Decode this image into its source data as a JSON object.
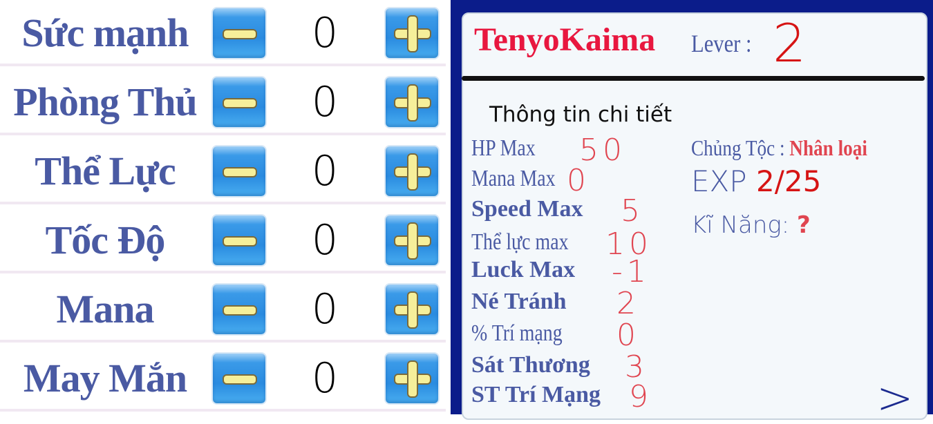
{
  "attributes": [
    {
      "label": "Sức mạnh",
      "value": "0"
    },
    {
      "label": "Phòng Thủ",
      "value": "0"
    },
    {
      "label": "Thể Lực",
      "value": "0"
    },
    {
      "label": "Tốc Độ",
      "value": "0"
    },
    {
      "label": "Mana",
      "value": "0"
    },
    {
      "label": "May Mắn",
      "value": "0"
    }
  ],
  "icons": {
    "decrease": "minus-icon",
    "increase": "plus-icon",
    "next": "chevron-right-icon"
  },
  "profile": {
    "name": "TenyoKaima",
    "level_label": "Lever :",
    "level": "2",
    "details_title": "Thông tin chi tiết"
  },
  "stats": [
    {
      "label": "HP Max",
      "value": "50"
    },
    {
      "label": "Mana Max",
      "value": "0"
    },
    {
      "label": "Speed Max",
      "value": "5"
    },
    {
      "label": "Thể lực max",
      "value": "10"
    },
    {
      "label": "Luck Max",
      "value": "-1"
    },
    {
      "label": "Né Tránh",
      "value": "2"
    },
    {
      "label": "% Trí mạng",
      "value": "0"
    },
    {
      "label": "Sát Thương",
      "value": "3"
    },
    {
      "label": "ST Trí Mạng",
      "value": "9"
    }
  ],
  "info": {
    "race_label": "Chủng Tộc :",
    "race": "Nhân loại",
    "exp_label": "EXP",
    "exp": "2/25",
    "skill_label": "Kĩ Năng:",
    "skill": "?"
  },
  "next_label": ">",
  "colors": {
    "label_blue": "#4a5aa3",
    "name_red": "#e8173f",
    "value_red": "#e04550",
    "frame_blue": "#0b1c8a",
    "button_blue": "#2a8be0"
  }
}
